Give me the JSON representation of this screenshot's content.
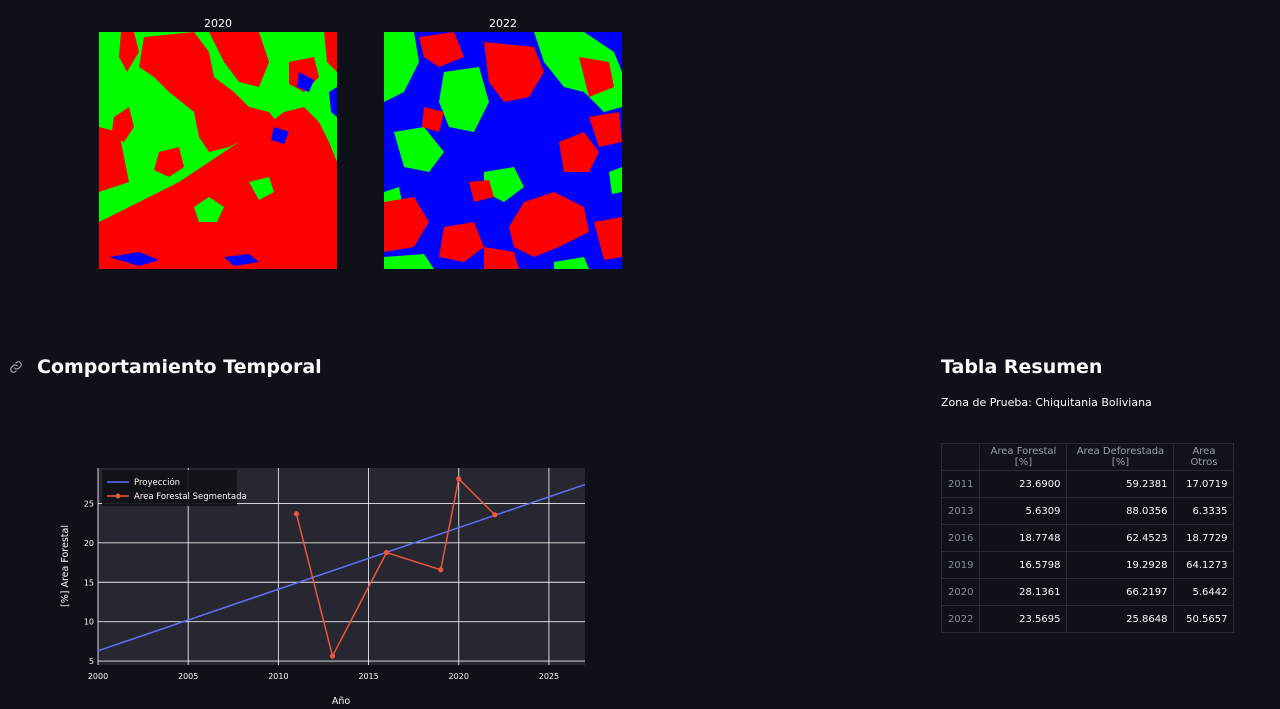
{
  "images": {
    "left_title": "2020",
    "right_title": "2022"
  },
  "colors": {
    "forest": "#00ff00",
    "deforested": "#ff0000",
    "others": "#0000ff",
    "projection_line": "#636efa",
    "segmented_line": "#ef553b",
    "plot_bg": "#262730"
  },
  "section_temporal": {
    "anchor_icon": "link-icon",
    "title": "Comportamiento Temporal"
  },
  "section_table": {
    "title": "Tabla Resumen",
    "caption": "Zona de Prueba: Chiquitania Boliviana",
    "columns": [
      "",
      "Area Forestal [%]",
      "Area Deforestada [%]",
      "Area Otros"
    ],
    "rows": [
      {
        "year": "2011",
        "forest": "23.6900",
        "deforested": "59.2381",
        "others": "17.0719"
      },
      {
        "year": "2013",
        "forest": "5.6309",
        "deforested": "88.0356",
        "others": "6.3335"
      },
      {
        "year": "2016",
        "forest": "18.7748",
        "deforested": "62.4523",
        "others": "18.7729"
      },
      {
        "year": "2019",
        "forest": "16.5798",
        "deforested": "19.2928",
        "others": "64.1273"
      },
      {
        "year": "2020",
        "forest": "28.1361",
        "deforested": "66.2197",
        "others": "5.6442"
      },
      {
        "year": "2022",
        "forest": "23.5695",
        "deforested": "25.8648",
        "others": "50.5657"
      }
    ]
  },
  "chart_data": {
    "type": "line",
    "title": "",
    "xlabel": "Año",
    "ylabel": "[%] Area Forestal",
    "xlim": [
      2000,
      2027
    ],
    "ylim": [
      4.5,
      29.5
    ],
    "xticks": [
      2000,
      2005,
      2010,
      2015,
      2020,
      2025
    ],
    "yticks": [
      5,
      10,
      15,
      20,
      25
    ],
    "grid": true,
    "legend": "top-left",
    "series": [
      {
        "name": "Proyección",
        "mode": "lines",
        "x": [
          2000,
          2027
        ],
        "y": [
          6.3,
          27.4
        ]
      },
      {
        "name": "Area Forestal Segmentada",
        "mode": "lines+markers",
        "x": [
          2011,
          2013,
          2016,
          2019,
          2020,
          2022
        ],
        "y": [
          23.69,
          5.6309,
          18.7748,
          16.5798,
          28.1361,
          23.5695
        ]
      }
    ]
  }
}
